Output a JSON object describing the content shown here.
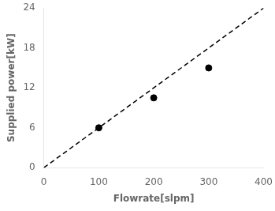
{
  "chart_data": {
    "type": "scatter",
    "xlabel": "Flowrate[slpm]",
    "ylabel": "Supplied power[kW]",
    "series": [
      {
        "type": "line",
        "x": [
          0,
          400
        ],
        "values": [
          0,
          24
        ],
        "color": "#000000",
        "line_style": "dashed"
      },
      {
        "type": "scatter",
        "x": [
          100,
          200,
          300
        ],
        "values": [
          6.0,
          10.5,
          15.0
        ],
        "color": "#000000",
        "marker": "circle"
      }
    ],
    "xlim": [
      0,
      400
    ],
    "ylim": [
      0,
      24
    ],
    "xticks": [
      0,
      100,
      200,
      300,
      400
    ],
    "yticks": [
      0,
      6,
      12,
      18,
      24
    ],
    "grid": false
  }
}
